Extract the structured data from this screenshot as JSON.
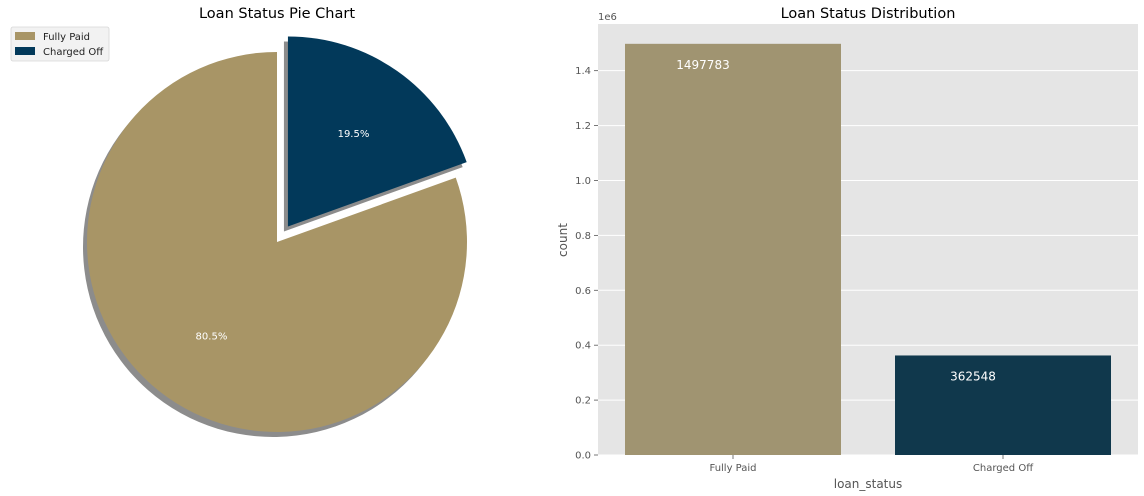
{
  "chart_data": [
    {
      "type": "pie",
      "title": "Loan Status Pie Chart",
      "labels": [
        "Fully Paid",
        "Charged Off"
      ],
      "values": [
        80.5,
        19.5
      ],
      "value_labels": [
        "80.5%",
        "19.5%"
      ],
      "colors": [
        "#a89566",
        "#02395a"
      ],
      "explode": [
        0,
        0.1
      ],
      "shadow": true,
      "legend": "top-left"
    },
    {
      "type": "bar",
      "title": "Loan Status Distribution",
      "categories": [
        "Fully Paid",
        "Charged Off"
      ],
      "values": [
        1497783,
        362548
      ],
      "value_labels": [
        "1497783",
        "362548"
      ],
      "colors": [
        "#a09471",
        "#10384c"
      ],
      "xlabel": "loan_status",
      "ylabel": "count",
      "ylim": [
        0,
        1.57
      ],
      "scale_label": "1e6",
      "yticks": [
        0,
        0.2,
        0.4,
        0.6,
        0.8,
        1.0,
        1.2,
        1.4
      ],
      "ytick_labels": [
        "0.0",
        "0.2",
        "0.4",
        "0.6",
        "0.8",
        "1.0",
        "1.2",
        "1.4"
      ],
      "grid": true,
      "background": "#e5e5e5"
    }
  ]
}
